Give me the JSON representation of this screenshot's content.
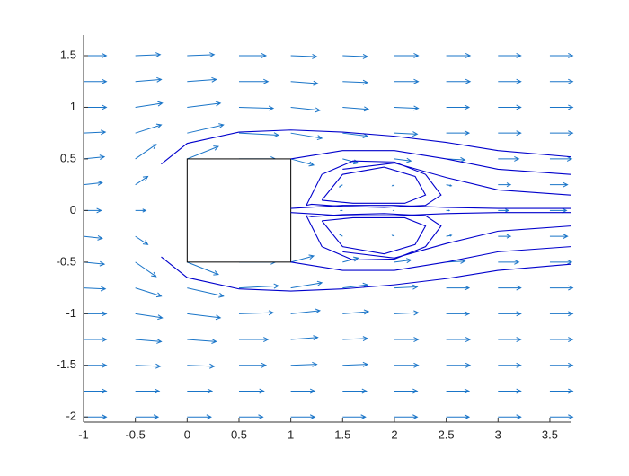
{
  "chart_data": {
    "type": "quiver",
    "xlim": [
      -1,
      3.7
    ],
    "ylim": [
      -2.05,
      1.7
    ],
    "xticks": [
      -1,
      -0.5,
      0,
      0.5,
      1,
      1.5,
      2,
      2.5,
      3,
      3.5
    ],
    "yticks": [
      -2,
      -1.5,
      -1,
      -0.5,
      0,
      0.5,
      1,
      1.5
    ],
    "arrow_color": "#1a75c8",
    "streamline_color": "#0000cc",
    "grid_x": [
      -1,
      -0.5,
      0,
      0.5,
      1,
      1.5,
      2,
      2.5,
      3,
      3.5
    ],
    "grid_y": [
      1.5,
      1.25,
      1,
      0.75,
      0.5,
      0.25,
      0,
      -0.25,
      -0.5,
      -0.75,
      -1,
      -1.25,
      -1.5,
      -1.75,
      -2
    ],
    "u": [
      [
        0.22,
        0.24,
        0.26,
        0.26,
        0.25,
        0.24,
        0.23,
        0.23,
        0.22,
        0.22
      ],
      [
        0.22,
        0.25,
        0.28,
        0.28,
        0.26,
        0.24,
        0.23,
        0.23,
        0.22,
        0.22
      ],
      [
        0.22,
        0.26,
        0.32,
        0.33,
        0.28,
        0.25,
        0.23,
        0.22,
        0.22,
        0.22
      ],
      [
        0.21,
        0.25,
        0.35,
        0.38,
        0.3,
        0.24,
        0.22,
        0.22,
        0.22,
        0.22
      ],
      [
        0.2,
        0.2,
        0.3,
        0.35,
        0.22,
        0.15,
        0.16,
        0.18,
        0.2,
        0.21
      ],
      [
        0.18,
        0.12,
        0,
        0,
        0,
        -0.03,
        -0.02,
        0.05,
        0.12,
        0.17
      ],
      [
        0.17,
        0.1,
        0,
        0,
        0,
        -0.02,
        -0.01,
        0.03,
        0.1,
        0.16
      ],
      [
        0.18,
        0.12,
        0,
        0,
        0,
        -0.03,
        -0.02,
        0.05,
        0.12,
        0.17
      ],
      [
        0.2,
        0.2,
        0.3,
        0.35,
        0.22,
        0.15,
        0.16,
        0.18,
        0.2,
        0.21
      ],
      [
        0.21,
        0.25,
        0.35,
        0.38,
        0.3,
        0.24,
        0.22,
        0.22,
        0.22,
        0.22
      ],
      [
        0.22,
        0.26,
        0.32,
        0.33,
        0.28,
        0.25,
        0.23,
        0.22,
        0.22,
        0.22
      ],
      [
        0.22,
        0.25,
        0.28,
        0.28,
        0.26,
        0.24,
        0.23,
        0.23,
        0.22,
        0.22
      ],
      [
        0.22,
        0.24,
        0.26,
        0.26,
        0.25,
        0.24,
        0.23,
        0.23,
        0.22,
        0.22
      ],
      [
        0.22,
        0.23,
        0.24,
        0.24,
        0.23,
        0.23,
        0.22,
        0.22,
        0.22,
        0.22
      ],
      [
        0.22,
        0.22,
        0.23,
        0.23,
        0.23,
        0.22,
        0.22,
        0.22,
        0.22,
        0.22
      ]
    ],
    "v": [
      [
        0,
        0.01,
        0.01,
        0,
        -0.01,
        -0.01,
        0,
        0,
        0,
        0
      ],
      [
        0,
        0.02,
        0.02,
        0,
        -0.02,
        -0.01,
        0,
        0,
        0,
        0
      ],
      [
        0,
        0.04,
        0.04,
        -0.01,
        -0.03,
        -0.02,
        -0.01,
        0,
        0,
        0
      ],
      [
        0.01,
        0.08,
        0.08,
        -0.02,
        -0.05,
        -0.03,
        -0.01,
        0,
        0,
        0
      ],
      [
        0.02,
        0.14,
        0.12,
        0,
        -0.06,
        -0.04,
        -0.02,
        -0.01,
        0,
        0
      ],
      [
        0.02,
        0.08,
        0,
        0,
        0,
        -0.02,
        -0.01,
        -0.01,
        0,
        0
      ],
      [
        0,
        0,
        0,
        0,
        0,
        0,
        0,
        0,
        0,
        0
      ],
      [
        -0.02,
        -0.08,
        0,
        0,
        0,
        0.02,
        0.01,
        0.01,
        0,
        0
      ],
      [
        -0.02,
        -0.14,
        -0.12,
        0,
        0.06,
        0.04,
        0.02,
        0.01,
        0,
        0
      ],
      [
        -0.01,
        -0.08,
        -0.08,
        0.02,
        0.05,
        0.03,
        0.01,
        0,
        0,
        0
      ],
      [
        0,
        -0.04,
        -0.04,
        0.01,
        0.03,
        0.02,
        0.01,
        0,
        0,
        0
      ],
      [
        0,
        -0.02,
        -0.02,
        0,
        0.02,
        0.01,
        0,
        0,
        0,
        0
      ],
      [
        0,
        -0.01,
        -0.01,
        0,
        0.01,
        0.01,
        0,
        0,
        0,
        0
      ],
      [
        0,
        0,
        0,
        0,
        0,
        0,
        0,
        0,
        0,
        0
      ],
      [
        0,
        0,
        0,
        0,
        0,
        0,
        0,
        0,
        0,
        0
      ]
    ],
    "streamlines": [
      {
        "x": [
          -0.25,
          0,
          0.5,
          1,
          1.5,
          2,
          2.5,
          3,
          3.7
        ],
        "y": [
          0.45,
          0.65,
          0.76,
          0.78,
          0.76,
          0.72,
          0.66,
          0.58,
          0.52
        ]
      },
      {
        "x": [
          1,
          1.5,
          2,
          2.5,
          3,
          3.7
        ],
        "y": [
          0.5,
          0.58,
          0.58,
          0.5,
          0.4,
          0.35
        ]
      },
      {
        "x": [
          1.5,
          2,
          2.5,
          3,
          3.7
        ],
        "y": [
          0.4,
          0.46,
          0.32,
          0.2,
          0.15
        ]
      },
      {
        "x": [
          1.15,
          1.3,
          1.6,
          2,
          2.3,
          2.45,
          2.3,
          1.9,
          1.5,
          1.2,
          1.15
        ],
        "y": [
          0.05,
          0.35,
          0.48,
          0.47,
          0.35,
          0.15,
          0.05,
          0.03,
          0.04,
          0.06,
          0.05
        ]
      },
      {
        "x": [
          1.3,
          1.5,
          1.9,
          2.2,
          2.3,
          2.1,
          1.6,
          1.3
        ],
        "y": [
          0.1,
          0.35,
          0.42,
          0.33,
          0.15,
          0.07,
          0.07,
          0.1
        ]
      },
      {
        "x": [
          1,
          1.5,
          2,
          2.5,
          3,
          3.7
        ],
        "y": [
          0.02,
          0.05,
          0.05,
          0.03,
          0.02,
          0.02
        ]
      },
      {
        "x": [
          -0.25,
          0,
          0.5,
          1,
          1.5,
          2,
          2.5,
          3,
          3.7
        ],
        "y": [
          -0.45,
          -0.65,
          -0.76,
          -0.78,
          -0.76,
          -0.72,
          -0.66,
          -0.58,
          -0.52
        ]
      },
      {
        "x": [
          1,
          1.5,
          2,
          2.5,
          3,
          3.7
        ],
        "y": [
          -0.5,
          -0.58,
          -0.58,
          -0.5,
          -0.4,
          -0.35
        ]
      },
      {
        "x": [
          1.5,
          2,
          2.5,
          3,
          3.7
        ],
        "y": [
          -0.4,
          -0.46,
          -0.32,
          -0.2,
          -0.15
        ]
      },
      {
        "x": [
          1.15,
          1.3,
          1.6,
          2,
          2.3,
          2.45,
          2.3,
          1.9,
          1.5,
          1.2,
          1.15
        ],
        "y": [
          -0.05,
          -0.35,
          -0.48,
          -0.47,
          -0.35,
          -0.15,
          -0.05,
          -0.03,
          -0.04,
          -0.06,
          -0.05
        ]
      },
      {
        "x": [
          1.3,
          1.5,
          1.9,
          2.2,
          2.3,
          2.1,
          1.6,
          1.3
        ],
        "y": [
          -0.1,
          -0.35,
          -0.42,
          -0.33,
          -0.15,
          -0.07,
          -0.07,
          -0.1
        ]
      },
      {
        "x": [
          1,
          1.5,
          2,
          2.5,
          3,
          3.7
        ],
        "y": [
          -0.02,
          -0.05,
          -0.05,
          -0.03,
          -0.02,
          -0.02
        ]
      }
    ],
    "obstacle": {
      "x": [
        0,
        1
      ],
      "y": [
        -0.5,
        0.5
      ]
    }
  }
}
